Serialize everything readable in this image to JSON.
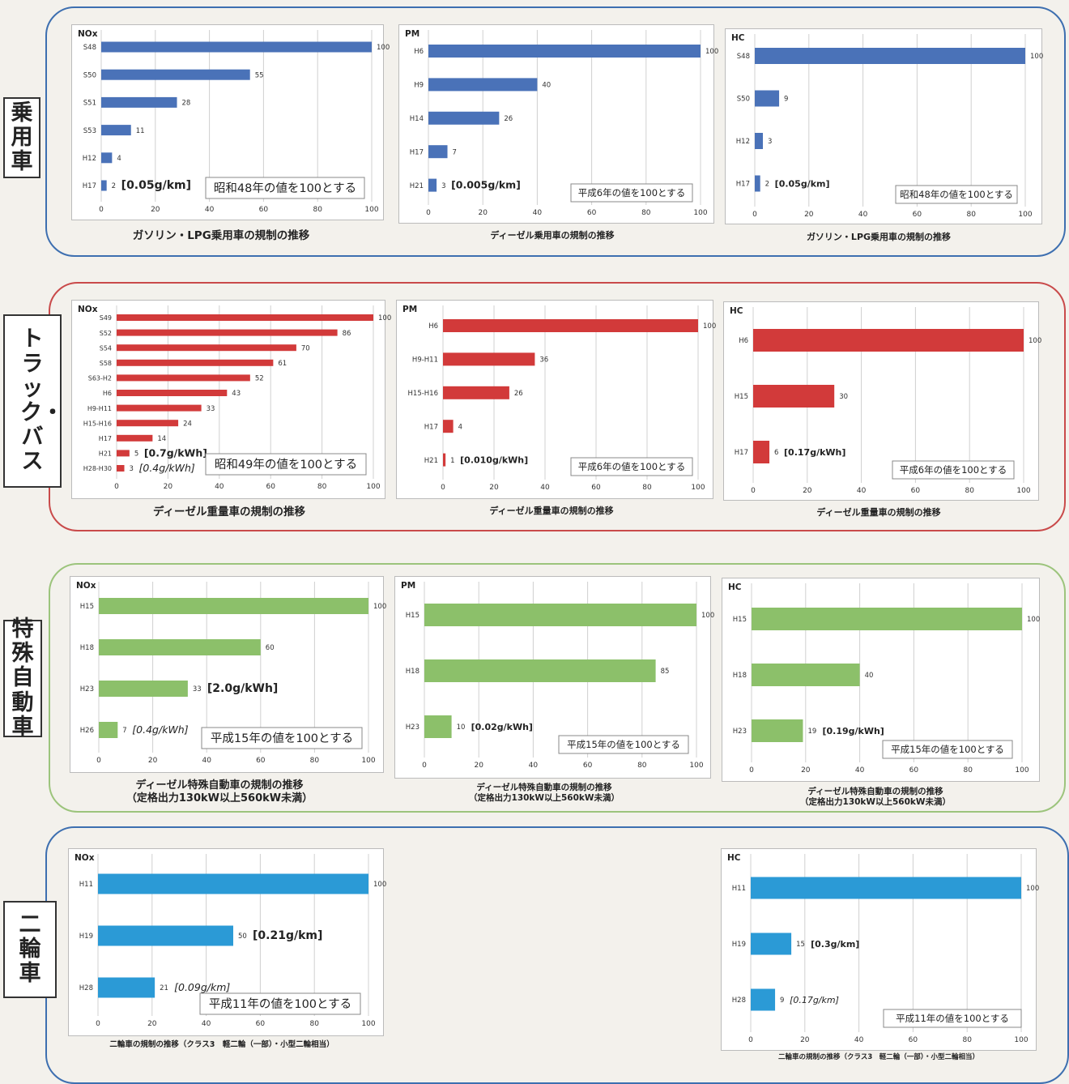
{
  "groups": [
    {
      "label": "乗用車",
      "color": "#3a6fb5"
    },
    {
      "label": "トラック・バス",
      "color": "#c8363a"
    },
    {
      "label": "特殊自動車",
      "color": "#8fbc6a"
    },
    {
      "label": "二輪車",
      "color": "#3a6fb5"
    }
  ],
  "chart_data": [
    {
      "type": "bar",
      "group": "乗用車",
      "pollutant": "NOx",
      "categories": [
        "S48",
        "S50",
        "S51",
        "S53",
        "H12",
        "H17"
      ],
      "values": [
        100,
        55,
        28,
        11,
        4,
        2
      ],
      "labels": [
        "100",
        "55",
        "28",
        "11",
        "4",
        "2"
      ],
      "xticks": [
        "0",
        "20",
        "40",
        "60",
        "80",
        "100"
      ],
      "xlim": [
        0,
        100
      ],
      "annotations": [
        {
          "index": 5,
          "text": "[0.05g/km]",
          "italic": false,
          "size": "lg"
        }
      ],
      "note": "昭和48年の値を100とする",
      "caption": [
        "ガソリン・LPG乗用車の規制の推移"
      ],
      "color": "#4a72b8"
    },
    {
      "type": "bar",
      "group": "乗用車",
      "pollutant": "PM",
      "categories": [
        "H6",
        "H9",
        "H14",
        "H17",
        "H21"
      ],
      "values": [
        100,
        40,
        26,
        7,
        3
      ],
      "labels": [
        "100",
        "40",
        "26",
        "7",
        "3"
      ],
      "xticks": [
        "0",
        "20",
        "40",
        "60",
        "80",
        "100"
      ],
      "xlim": [
        0,
        100
      ],
      "annotations": [
        {
          "index": 4,
          "text": "[0.005g/km]",
          "italic": false,
          "size": "md"
        }
      ],
      "note": "平成6年の値を100とする",
      "caption": [
        "ディーゼル乗用車の規制の推移"
      ],
      "color": "#4a72b8"
    },
    {
      "type": "bar",
      "group": "乗用車",
      "pollutant": "HC",
      "categories": [
        "S48",
        "S50",
        "H12",
        "H17"
      ],
      "values": [
        100,
        9,
        3,
        2
      ],
      "labels": [
        "100",
        "9",
        "3",
        "2"
      ],
      "xticks": [
        "0",
        "20",
        "40",
        "60",
        "80",
        "100"
      ],
      "xlim": [
        0,
        100
      ],
      "annotations": [
        {
          "index": 3,
          "text": "[0.05g/km]",
          "italic": false,
          "size": "sm"
        }
      ],
      "note": "昭和48年の値を100とする",
      "caption": [
        "ガソリン・LPG乗用車の規制の推移"
      ],
      "color": "#4a72b8"
    },
    {
      "type": "bar",
      "group": "トラック・バス",
      "pollutant": "NOx",
      "categories": [
        "S49",
        "S52",
        "S54",
        "S58",
        "S63-H2",
        "H6",
        "H9-H11",
        "H15-H16",
        "H17",
        "H21",
        "H28-H30"
      ],
      "values": [
        100,
        86,
        70,
        61,
        52,
        43,
        33,
        24,
        14,
        5,
        3
      ],
      "labels": [
        "100",
        "86",
        "70",
        "61",
        "52",
        "43",
        "33",
        "24",
        "14",
        "5",
        "3"
      ],
      "xticks": [
        "0",
        "20",
        "40",
        "60",
        "80",
        "100"
      ],
      "xlim": [
        0,
        100
      ],
      "annotations": [
        {
          "index": 9,
          "text": "[0.7g/kWh]",
          "italic": false,
          "size": "md"
        },
        {
          "index": 10,
          "text": "[0.4g/kWh]",
          "italic": true,
          "size": "md"
        }
      ],
      "note": "昭和49年の値を100とする",
      "caption": [
        "ディーゼル重量車の規制の推移"
      ],
      "color": "#d23a3a"
    },
    {
      "type": "bar",
      "group": "トラック・バス",
      "pollutant": "PM",
      "categories": [
        "H6",
        "H9-H11",
        "H15-H16",
        "H17",
        "H21"
      ],
      "values": [
        100,
        36,
        26,
        4,
        1
      ],
      "labels": [
        "100",
        "36",
        "26",
        "4",
        "1"
      ],
      "xticks": [
        "0",
        "20",
        "40",
        "60",
        "80",
        "100"
      ],
      "xlim": [
        0,
        100
      ],
      "annotations": [
        {
          "index": 4,
          "text": "[0.010g/kWh]",
          "italic": false,
          "size": "sm"
        }
      ],
      "note": "平成6年の値を100とする",
      "caption": [
        "ディーゼル重量車の規制の推移"
      ],
      "color": "#d23a3a"
    },
    {
      "type": "bar",
      "group": "トラック・バス",
      "pollutant": "HC",
      "categories": [
        "H6",
        "H15",
        "H17"
      ],
      "values": [
        100,
        30,
        6
      ],
      "labels": [
        "100",
        "30",
        "6"
      ],
      "xticks": [
        "0",
        "20",
        "40",
        "60",
        "80",
        "100"
      ],
      "xlim": [
        0,
        100
      ],
      "annotations": [
        {
          "index": 2,
          "text": "[0.17g/kWh]",
          "italic": false,
          "size": "sm"
        }
      ],
      "note": "平成6年の値を100とする",
      "caption": [
        "ディーゼル重量車の規制の推移"
      ],
      "color": "#d23a3a"
    },
    {
      "type": "bar",
      "group": "特殊自動車",
      "pollutant": "NOx",
      "categories": [
        "H15",
        "H18",
        "H23",
        "H26"
      ],
      "values": [
        100,
        60,
        33,
        7
      ],
      "labels": [
        "100",
        "60",
        "33",
        "7"
      ],
      "xticks": [
        "0",
        "20",
        "40",
        "60",
        "80",
        "100"
      ],
      "xlim": [
        0,
        100
      ],
      "annotations": [
        {
          "index": 2,
          "text": "[2.0g/kWh]",
          "italic": false,
          "size": "lg"
        },
        {
          "index": 3,
          "text": "[0.4g/kWh]",
          "italic": true,
          "size": "md"
        }
      ],
      "note": "平成15年の値を100とする",
      "caption": [
        "ディーゼル特殊自動車の規制の推移",
        "（定格出力130kW以上560kW未満）"
      ],
      "color": "#8cc06a"
    },
    {
      "type": "bar",
      "group": "特殊自動車",
      "pollutant": "PM",
      "categories": [
        "H15",
        "H18",
        "H23"
      ],
      "values": [
        100,
        85,
        10
      ],
      "labels": [
        "100",
        "85",
        "10"
      ],
      "xticks": [
        "0",
        "20",
        "40",
        "60",
        "80",
        "100"
      ],
      "xlim": [
        0,
        100
      ],
      "annotations": [
        {
          "index": 2,
          "text": "[0.02g/kWh]",
          "italic": false,
          "size": "sm"
        }
      ],
      "note": "平成15年の値を100とする",
      "caption": [
        "ディーゼル特殊自動車の規制の推移",
        "（定格出力130kW以上560kW未満）"
      ],
      "color": "#8cc06a"
    },
    {
      "type": "bar",
      "group": "特殊自動車",
      "pollutant": "HC",
      "categories": [
        "H15",
        "H18",
        "H23"
      ],
      "values": [
        100,
        40,
        19
      ],
      "labels": [
        "100",
        "40",
        "19"
      ],
      "xticks": [
        "0",
        "20",
        "40",
        "60",
        "80",
        "100"
      ],
      "xlim": [
        0,
        100
      ],
      "annotations": [
        {
          "index": 2,
          "text": "[0.19g/kWh]",
          "italic": false,
          "size": "sm"
        }
      ],
      "note": "平成15年の値を100とする",
      "caption": [
        "ディーゼル特殊自動車の規制の推移",
        "（定格出力130kW以上560kW未満）"
      ],
      "color": "#8cc06a"
    },
    {
      "type": "bar",
      "group": "二輪車",
      "pollutant": "NOx",
      "categories": [
        "H11",
        "H19",
        "H28"
      ],
      "values": [
        100,
        50,
        21
      ],
      "labels": [
        "100",
        "50",
        "21"
      ],
      "xticks": [
        "0",
        "20",
        "40",
        "60",
        "80",
        "100"
      ],
      "xlim": [
        0,
        100
      ],
      "annotations": [
        {
          "index": 1,
          "text": "[0.21g/km]",
          "italic": false,
          "size": "lg"
        },
        {
          "index": 2,
          "text": "[0.09g/km]",
          "italic": true,
          "size": "md"
        }
      ],
      "note": "平成11年の値を100とする",
      "caption": [
        "二輪車の規制の推移（クラス3　軽二輪（一部）・小型二輪相当）"
      ],
      "color": "#2b9ad6"
    },
    {
      "type": "bar",
      "group": "二輪車",
      "pollutant": "HC",
      "categories": [
        "H11",
        "H19",
        "H28"
      ],
      "values": [
        100,
        15,
        9
      ],
      "labels": [
        "100",
        "15",
        "9"
      ],
      "xticks": [
        "0",
        "20",
        "40",
        "60",
        "80",
        "100"
      ],
      "xlim": [
        0,
        100
      ],
      "annotations": [
        {
          "index": 1,
          "text": "[0.3g/km]",
          "italic": false,
          "size": "sm"
        },
        {
          "index": 2,
          "text": "[0.17g/km]",
          "italic": true,
          "size": "sm"
        }
      ],
      "note": "平成11年の値を100とする",
      "caption": [
        "二輪車の規制の推移（クラス3　軽二輪（一部）・小型二輪相当）"
      ],
      "color": "#2b9ad6"
    }
  ]
}
